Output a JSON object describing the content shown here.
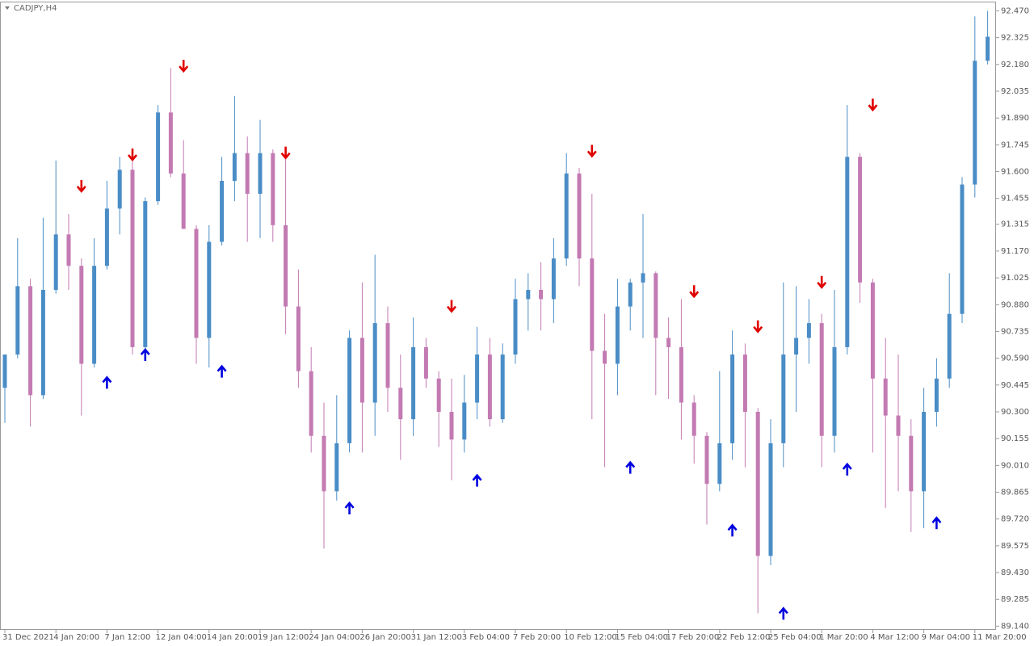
{
  "chart_data": {
    "type": "candlestick",
    "title": "CADJPY,H4",
    "up_color": "#4a8dc6",
    "down_color": "#c37ab2",
    "categories": [
      "31 Dec 2021",
      null,
      null,
      null,
      "4 Jan 20:00",
      null,
      null,
      null,
      "7 Jan 12:00",
      null,
      null,
      null,
      "12 Jan 04:00",
      null,
      null,
      null,
      "14 Jan 20:00",
      null,
      null,
      null,
      "19 Jan 12:00",
      null,
      null,
      null,
      "24 Jan 04:00",
      null,
      null,
      null,
      "26 Jan 20:00",
      null,
      null,
      null,
      "31 Jan 12:00",
      null,
      null,
      null,
      "3 Feb 04:00",
      null,
      null,
      null,
      "7 Feb 20:00",
      null,
      null,
      null,
      "10 Feb 12:00",
      null,
      null,
      null,
      "15 Feb 04:00",
      null,
      null,
      null,
      "17 Feb 20:00",
      null,
      null,
      null,
      "22 Feb 12:00",
      null,
      null,
      null,
      "25 Feb 04:00",
      null,
      null,
      null,
      "1 Mar 20:00",
      null,
      null,
      null,
      "4 Mar 12:00",
      null,
      null,
      null,
      "9 Mar 04:00",
      null,
      null,
      null,
      "11 Mar 20:00",
      null
    ],
    "open": [
      90.43,
      90.61,
      90.98,
      90.39,
      90.96,
      91.26,
      91.09,
      90.56,
      91.09,
      91.4,
      91.61,
      90.65,
      91.44,
      91.92,
      91.59,
      91.29,
      90.7,
      91.22,
      91.55,
      91.7,
      91.48,
      91.7,
      91.31,
      90.87,
      90.52,
      90.17,
      89.87,
      90.13,
      90.7,
      90.35,
      90.78,
      90.43,
      90.26,
      90.65,
      90.48,
      90.3,
      90.15,
      90.35,
      90.61,
      90.26,
      90.61,
      90.91,
      90.96,
      90.91,
      91.13,
      91.59,
      91.13,
      90.63,
      90.56,
      90.87,
      91.0,
      91.05,
      90.7,
      90.65,
      90.35,
      90.17,
      89.91,
      90.13,
      90.61,
      90.3,
      89.52,
      90.13,
      90.61,
      90.7,
      90.78,
      90.17,
      90.65,
      91.68,
      91.0,
      90.48,
      90.28,
      90.17,
      89.87,
      90.3,
      90.48,
      90.83,
      91.53,
      92.2
    ],
    "high": [
      90.61,
      91.24,
      91.02,
      91.35,
      91.66,
      91.37,
      91.13,
      91.24,
      91.55,
      91.68,
      91.66,
      91.46,
      91.96,
      92.16,
      91.77,
      91.31,
      91.31,
      91.68,
      92.01,
      91.79,
      91.88,
      91.72,
      91.68,
      91.07,
      90.65,
      90.35,
      90.39,
      90.74,
      91.0,
      91.15,
      90.87,
      90.61,
      90.81,
      90.7,
      90.52,
      90.48,
      90.5,
      90.76,
      90.7,
      90.67,
      91.02,
      91.05,
      91.11,
      91.24,
      91.7,
      91.62,
      91.48,
      90.83,
      91.02,
      91.02,
      91.37,
      91.06,
      90.81,
      90.91,
      90.39,
      90.19,
      90.52,
      90.74,
      90.67,
      90.32,
      90.26,
      91.0,
      90.98,
      90.91,
      90.83,
      90.96,
      91.96,
      91.7,
      91.02,
      90.7,
      90.61,
      90.26,
      90.43,
      90.59,
      91.05,
      91.57,
      92.44,
      92.47
    ],
    "low": [
      90.24,
      90.59,
      90.22,
      90.37,
      90.94,
      90.96,
      90.28,
      90.54,
      91.07,
      91.26,
      90.61,
      90.63,
      91.42,
      91.57,
      91.29,
      90.56,
      90.54,
      91.2,
      91.44,
      91.22,
      91.24,
      91.22,
      90.72,
      90.43,
      90.08,
      89.56,
      89.82,
      90.08,
      90.08,
      90.17,
      90.3,
      90.04,
      90.17,
      90.43,
      90.11,
      89.93,
      90.08,
      90.26,
      90.22,
      90.24,
      90.56,
      90.74,
      90.74,
      90.78,
      91.09,
      90.98,
      90.26,
      90.0,
      90.39,
      90.74,
      90.7,
      90.39,
      90.37,
      90.15,
      90.02,
      89.69,
      89.87,
      90.04,
      90.0,
      89.21,
      89.47,
      90.0,
      90.3,
      90.56,
      90.0,
      90.08,
      90.61,
      90.89,
      90.08,
      89.78,
      89.87,
      89.65,
      89.67,
      90.22,
      90.43,
      90.78,
      91.46,
      92.18
    ],
    "close": [
      90.61,
      90.98,
      90.39,
      90.96,
      91.26,
      91.09,
      90.56,
      91.09,
      91.4,
      91.61,
      90.65,
      91.44,
      91.92,
      91.59,
      91.29,
      90.7,
      91.22,
      91.55,
      91.7,
      91.48,
      91.7,
      91.31,
      90.87,
      90.52,
      90.17,
      89.87,
      90.13,
      90.7,
      90.35,
      90.78,
      90.43,
      90.26,
      90.65,
      90.48,
      90.3,
      90.15,
      90.35,
      90.61,
      90.26,
      90.61,
      90.91,
      90.96,
      90.91,
      91.13,
      91.59,
      91.13,
      90.63,
      90.56,
      90.87,
      91.0,
      91.05,
      90.7,
      90.65,
      90.35,
      90.17,
      89.91,
      90.13,
      90.61,
      90.3,
      89.52,
      90.13,
      90.61,
      90.7,
      90.78,
      90.17,
      90.65,
      91.68,
      91.0,
      90.48,
      90.28,
      90.17,
      89.87,
      90.3,
      90.48,
      90.83,
      91.53,
      92.2,
      92.33
    ],
    "sell_color": "#e00000",
    "buy_color": "#0000e0",
    "sell_signals": [
      {
        "index": 6,
        "price": 91.52
      },
      {
        "index": 10,
        "price": 91.69
      },
      {
        "index": 14,
        "price": 92.17
      },
      {
        "index": 22,
        "price": 91.7
      },
      {
        "index": 35,
        "price": 90.87
      },
      {
        "index": 46,
        "price": 91.71
      },
      {
        "index": 54,
        "price": 90.95
      },
      {
        "index": 59,
        "price": 90.76
      },
      {
        "index": 64,
        "price": 91.0
      },
      {
        "index": 68,
        "price": 91.96
      }
    ],
    "buy_signals": [
      {
        "index": 8,
        "price": 90.46
      },
      {
        "index": 11,
        "price": 90.61
      },
      {
        "index": 17,
        "price": 90.52
      },
      {
        "index": 27,
        "price": 89.78
      },
      {
        "index": 37,
        "price": 89.93
      },
      {
        "index": 49,
        "price": 90.0
      },
      {
        "index": 57,
        "price": 89.66
      },
      {
        "index": 61,
        "price": 89.21
      },
      {
        "index": 66,
        "price": 89.99
      },
      {
        "index": 73,
        "price": 89.7
      }
    ],
    "ylim": [
      89.12,
      92.52
    ],
    "yticks": [
      {
        "value": 92.47,
        "label": "92.470"
      },
      92.325,
      {
        "value": 92.18,
        "label": "92.180"
      },
      92.035,
      {
        "value": 91.89,
        "label": "91.890"
      },
      91.745,
      {
        "value": 91.6,
        "label": "91.600"
      },
      91.455,
      91.315,
      {
        "value": 91.17,
        "label": "91.170"
      },
      91.025,
      {
        "value": 90.88,
        "label": "90.880"
      },
      90.735,
      {
        "value": 90.59,
        "label": "90.590"
      },
      90.445,
      {
        "value": 90.3,
        "label": "90.300"
      },
      90.155,
      {
        "value": 90.01,
        "label": "90.010"
      },
      89.865,
      {
        "value": 89.72,
        "label": "89.720"
      },
      89.575,
      {
        "value": 89.43,
        "label": "89.430"
      },
      89.285,
      {
        "value": 89.14,
        "label": "89.140"
      }
    ]
  }
}
